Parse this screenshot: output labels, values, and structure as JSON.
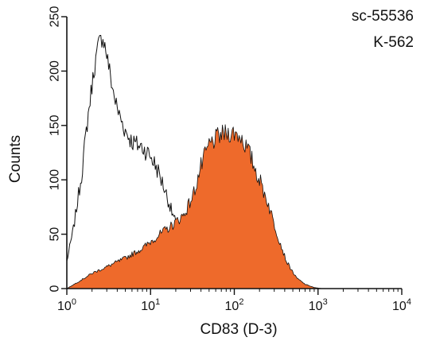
{
  "chart_data": {
    "type": "area",
    "xlabel": "CD83 (D-3)",
    "ylabel": "Counts",
    "x_scale": "log",
    "xlim": [
      1,
      10000
    ],
    "ylim": [
      0,
      250
    ],
    "x_ticks": [
      {
        "value": 1,
        "base": "10",
        "exp": "0"
      },
      {
        "value": 10,
        "base": "10",
        "exp": "1"
      },
      {
        "value": 100,
        "base": "10",
        "exp": "2"
      },
      {
        "value": 1000,
        "base": "10",
        "exp": "3"
      },
      {
        "value": 10000,
        "base": "10",
        "exp": "4"
      }
    ],
    "y_ticks": [
      0,
      50,
      100,
      150,
      200,
      250
    ],
    "annotations": [
      "sc-55536",
      "K-562"
    ],
    "grid": false,
    "series": [
      {
        "style": "outline",
        "color": "#111111",
        "points": [
          [
            1.0,
            25
          ],
          [
            1.2,
            55
          ],
          [
            1.5,
            105
          ],
          [
            1.8,
            160
          ],
          [
            2.1,
            200
          ],
          [
            2.4,
            225
          ],
          [
            2.7,
            232
          ],
          [
            3.0,
            215
          ],
          [
            3.5,
            185
          ],
          [
            4.0,
            165
          ],
          [
            5.0,
            145
          ],
          [
            6.0,
            135
          ],
          [
            7.0,
            132
          ],
          [
            8.0,
            130
          ],
          [
            10.0,
            122
          ],
          [
            12.0,
            110
          ],
          [
            15.0,
            90
          ],
          [
            18.0,
            70
          ],
          [
            22.0,
            52
          ],
          [
            28.0,
            38
          ],
          [
            35.0,
            27
          ],
          [
            45.0,
            17
          ],
          [
            60.0,
            8
          ],
          [
            80.0,
            4
          ],
          [
            120.0,
            2
          ],
          [
            200.0,
            1
          ],
          [
            300.0,
            0
          ]
        ]
      },
      {
        "style": "filled",
        "color": "#ee6a2b",
        "points": [
          [
            1.0,
            0
          ],
          [
            1.5,
            8
          ],
          [
            2.0,
            14
          ],
          [
            3.0,
            20
          ],
          [
            5.0,
            28
          ],
          [
            8.0,
            37
          ],
          [
            12.0,
            48
          ],
          [
            18.0,
            58
          ],
          [
            25.0,
            68
          ],
          [
            32.0,
            85
          ],
          [
            40.0,
            112
          ],
          [
            50.0,
            132
          ],
          [
            65.0,
            140
          ],
          [
            80.0,
            143
          ],
          [
            100.0,
            143
          ],
          [
            120.0,
            140
          ],
          [
            150.0,
            125
          ],
          [
            200.0,
            100
          ],
          [
            250.0,
            80
          ],
          [
            320.0,
            52
          ],
          [
            420.0,
            25
          ],
          [
            550.0,
            10
          ],
          [
            700.0,
            4
          ],
          [
            900.0,
            1
          ],
          [
            1100.0,
            0
          ]
        ]
      }
    ]
  }
}
